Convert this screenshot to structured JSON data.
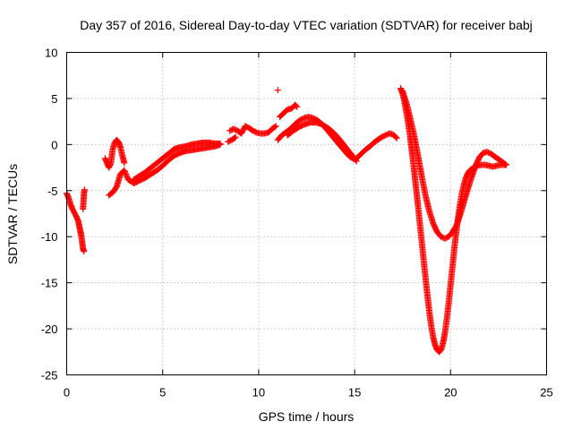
{
  "chart_data": {
    "type": "scatter",
    "title": "Day 357 of 2016, Sidereal Day-to-day VTEC variation (SDTVAR) for receiver babj",
    "xlabel": "GPS time / hours",
    "ylabel": "SDTVAR / TECUs",
    "xlim": [
      0,
      25
    ],
    "ylim": [
      -25,
      10
    ],
    "xticks": [
      0,
      5,
      10,
      15,
      20,
      25
    ],
    "yticks": [
      10,
      5,
      0,
      -5,
      -10,
      -15,
      -20,
      -25
    ],
    "grid": true,
    "marker": "+",
    "color": "#ff0000",
    "series": [
      {
        "name": "seg1",
        "x": [
          0.0,
          0.1,
          0.2,
          0.3,
          0.4,
          0.5,
          0.6,
          0.65,
          0.7,
          0.75,
          0.8,
          0.85,
          0.9
        ],
        "y": [
          -5.3,
          -5.8,
          -6.5,
          -7.0,
          -7.4,
          -7.8,
          -8.3,
          -8.8,
          -9.3,
          -9.8,
          -10.5,
          -11.3,
          -11.6
        ]
      },
      {
        "name": "seg1b",
        "x": [
          0.85,
          0.88,
          0.9,
          0.93
        ],
        "y": [
          -7.0,
          -6.0,
          -5.3,
          -4.9
        ]
      },
      {
        "name": "seg2",
        "x": [
          2.0,
          2.1,
          2.2,
          2.3,
          2.4,
          2.5,
          2.6,
          2.7,
          2.8,
          2.9,
          3.0
        ],
        "y": [
          -1.5,
          -2.0,
          -2.5,
          -2.0,
          -0.5,
          0.2,
          0.5,
          0.3,
          -0.3,
          -1.2,
          -2.0
        ]
      },
      {
        "name": "seg3",
        "x": [
          2.2,
          2.4,
          2.6,
          2.8,
          3.0,
          3.2,
          3.5,
          3.8,
          4.1,
          4.4,
          4.7,
          5.0,
          5.3,
          5.6,
          5.9,
          6.2,
          6.5,
          6.8,
          7.1,
          7.4,
          7.7,
          8.0
        ],
        "y": [
          -5.5,
          -5.2,
          -4.6,
          -3.2,
          -2.8,
          -3.8,
          -4.2,
          -3.9,
          -3.6,
          -3.2,
          -2.8,
          -2.3,
          -1.7,
          -1.2,
          -0.9,
          -0.7,
          -0.6,
          -0.5,
          -0.4,
          -0.3,
          -0.2,
          0.0
        ]
      },
      {
        "name": "seg4",
        "x": [
          3.5,
          3.8,
          4.1,
          4.4,
          4.7,
          5.0,
          5.3,
          5.6,
          5.9,
          6.2,
          6.5,
          6.8,
          7.1,
          7.4,
          7.7,
          8.0
        ],
        "y": [
          -3.8,
          -3.4,
          -3.0,
          -2.5,
          -2.0,
          -1.5,
          -1.0,
          -0.5,
          -0.3,
          -0.2,
          0.0,
          0.1,
          0.2,
          0.2,
          0.1,
          0.1
        ]
      },
      {
        "name": "seg5",
        "x": [
          8.5,
          8.7,
          8.9,
          9.1,
          9.3,
          9.5,
          9.7,
          9.9,
          10.1,
          10.3,
          10.5,
          10.7,
          10.9
        ],
        "y": [
          1.5,
          1.7,
          1.5,
          1.2,
          2.0,
          1.8,
          1.5,
          1.3,
          1.2,
          1.2,
          1.3,
          1.7,
          2.0
        ]
      },
      {
        "name": "seg5b",
        "x": [
          8.4,
          8.6,
          8.8
        ],
        "y": [
          0.3,
          0.5,
          0.8
        ]
      },
      {
        "name": "seg6",
        "x": [
          11.0
        ],
        "y": [
          5.9
        ]
      },
      {
        "name": "seg7",
        "x": [
          11.1,
          11.3,
          11.5,
          11.7,
          11.9,
          12.0
        ],
        "y": [
          3.0,
          3.4,
          3.8,
          3.9,
          4.3,
          4.1
        ]
      },
      {
        "name": "seg8",
        "x": [
          11.0,
          11.2,
          11.4,
          11.6,
          11.8,
          12.0,
          12.2,
          12.4,
          12.6,
          12.8,
          13.0,
          13.2,
          13.4,
          13.6,
          13.8,
          14.0,
          14.2,
          14.4,
          14.6,
          14.8,
          15.0,
          15.2,
          15.4,
          15.6,
          15.8,
          16.0,
          16.2,
          16.4,
          16.6,
          16.8,
          17.0,
          17.2
        ],
        "y": [
          0.5,
          1.0,
          1.3,
          1.6,
          2.0,
          2.4,
          2.7,
          2.9,
          3.0,
          2.9,
          2.7,
          2.4,
          2.0,
          1.5,
          1.0,
          0.5,
          0.0,
          -0.5,
          -1.0,
          -1.4,
          -1.6,
          -1.3,
          -0.9,
          -0.5,
          -0.2,
          0.2,
          0.5,
          0.8,
          1.0,
          1.2,
          1.1,
          0.7
        ]
      },
      {
        "name": "seg9",
        "x": [
          11.5,
          11.8,
          12.1,
          12.4,
          12.7,
          13.0,
          13.3,
          13.6,
          13.9,
          14.2,
          14.5,
          14.8,
          15.1
        ],
        "y": [
          1.0,
          1.5,
          1.9,
          2.2,
          2.4,
          2.4,
          2.2,
          1.8,
          1.3,
          0.6,
          -0.2,
          -1.0,
          -1.8
        ]
      },
      {
        "name": "seg10",
        "x": [
          17.4,
          17.5,
          17.6,
          17.7,
          17.8,
          17.9,
          18.0,
          18.1,
          18.2,
          18.3,
          18.4,
          18.5,
          18.6,
          18.7,
          18.8,
          18.9,
          19.0,
          19.1,
          19.2,
          19.3,
          19.4,
          19.5,
          19.6,
          19.7,
          19.8,
          19.9,
          20.0,
          20.1,
          20.2,
          20.3,
          20.4,
          20.5,
          20.6,
          20.7,
          20.8,
          20.9,
          21.0,
          21.2,
          21.4,
          21.6,
          21.8,
          22.0,
          22.2,
          22.4,
          22.6,
          22.8,
          22.9
        ],
        "y": [
          6.1,
          5.5,
          4.6,
          3.5,
          2.2,
          0.7,
          -1.0,
          -2.8,
          -4.7,
          -6.6,
          -8.6,
          -10.6,
          -12.6,
          -14.6,
          -16.5,
          -18.3,
          -19.8,
          -21.0,
          -21.8,
          -22.3,
          -22.5,
          -22.3,
          -21.6,
          -20.5,
          -19.0,
          -17.2,
          -15.2,
          -13.2,
          -11.2,
          -9.4,
          -7.8,
          -6.4,
          -5.2,
          -4.3,
          -3.6,
          -3.1,
          -2.8,
          -2.5,
          -2.3,
          -2.2,
          -2.2,
          -2.3,
          -2.4,
          -2.3,
          -2.2,
          -2.2,
          -2.2
        ]
      },
      {
        "name": "seg11",
        "x": [
          17.5,
          17.7,
          17.9,
          18.1,
          18.3,
          18.5,
          18.7,
          18.9,
          19.1,
          19.3,
          19.5,
          19.7,
          19.9,
          20.1,
          20.3,
          20.5,
          20.7,
          20.9,
          21.1,
          21.3,
          21.5,
          21.7,
          21.9,
          22.1,
          22.3,
          22.5,
          22.7,
          22.9
        ],
        "y": [
          5.8,
          4.5,
          2.8,
          1.0,
          -1.2,
          -3.5,
          -5.6,
          -7.3,
          -8.6,
          -9.5,
          -10.0,
          -10.2,
          -10.0,
          -9.5,
          -8.8,
          -7.6,
          -6.2,
          -4.8,
          -3.5,
          -2.3,
          -1.4,
          -0.9,
          -0.8,
          -1.0,
          -1.3,
          -1.6,
          -1.9,
          -2.2
        ]
      }
    ]
  }
}
